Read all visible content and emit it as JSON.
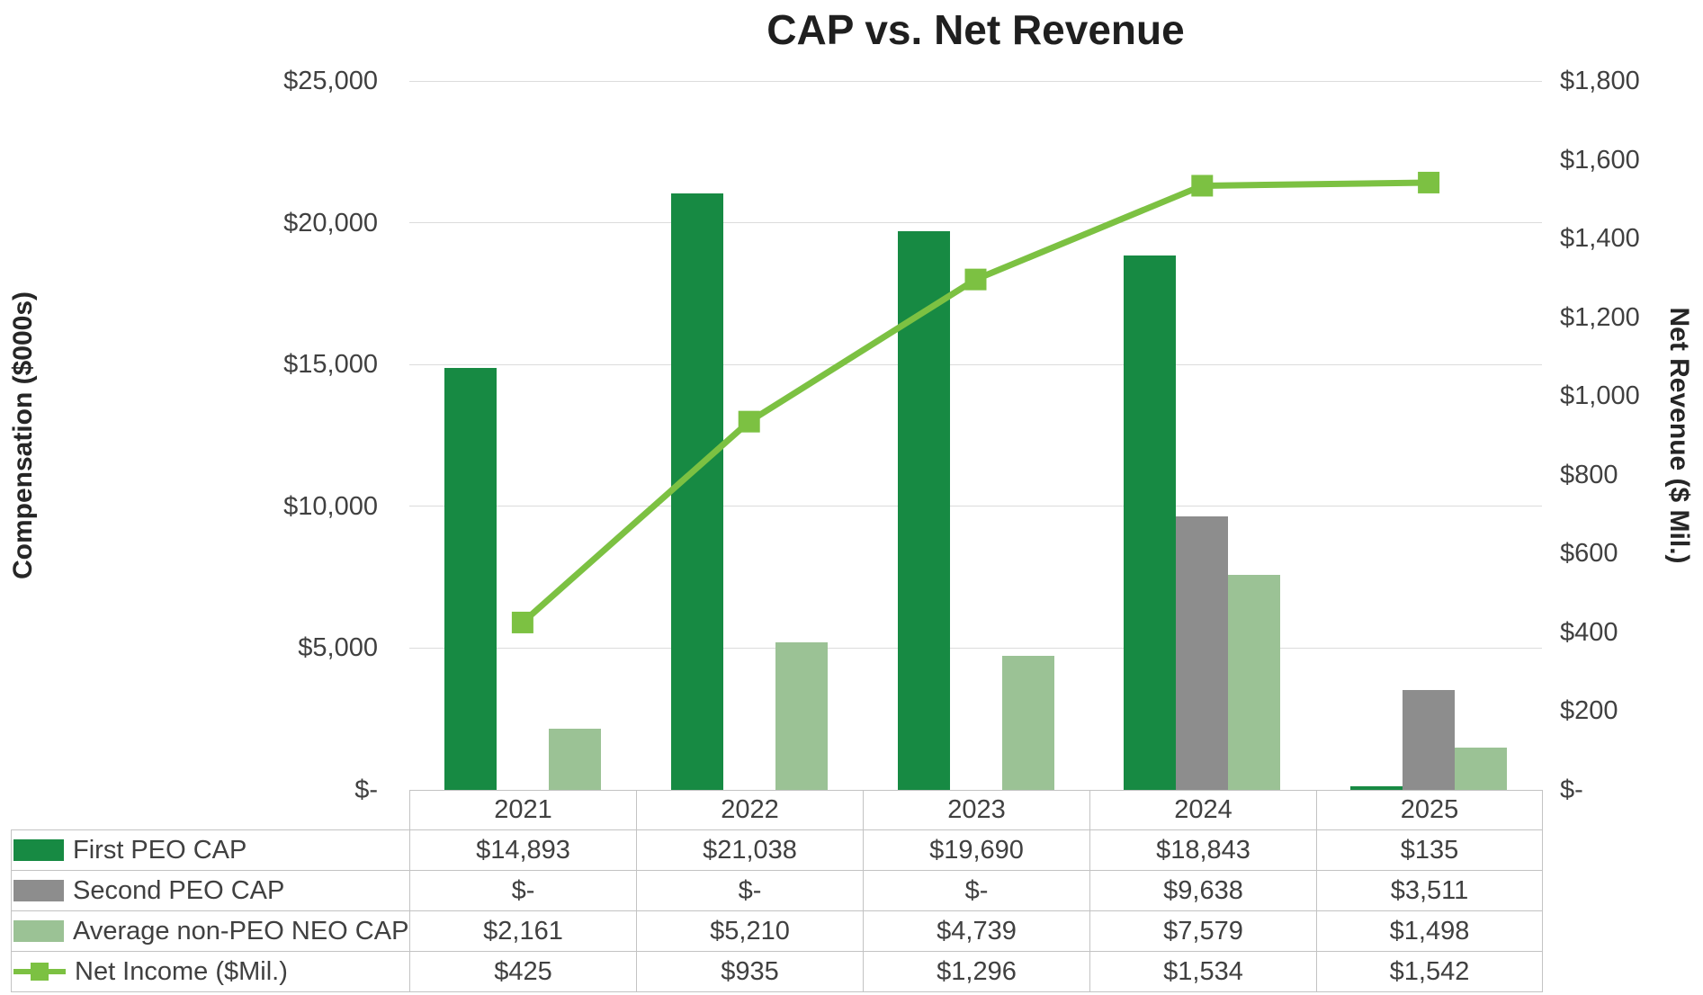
{
  "chart_data": {
    "type": "combo-bar-line",
    "title": "CAP vs. Net Revenue",
    "ylabel_left": "Compensation ($000s)",
    "ylabel_right": "Net Revenue ($ Mil.)",
    "categories": [
      "2021",
      "2022",
      "2023",
      "2024",
      "2025"
    ],
    "grid": true,
    "legend_position": "table-left",
    "left_axis": {
      "min": 0,
      "max": 25000,
      "tick_values": [
        0,
        5000,
        10000,
        15000,
        20000,
        25000
      ],
      "ticks": [
        "$-",
        "$5,000",
        "$10,000",
        "$15,000",
        "$20,000",
        "$25,000"
      ]
    },
    "right_axis": {
      "min": 0,
      "max": 1800,
      "tick_values": [
        0,
        200,
        400,
        600,
        800,
        1000,
        1200,
        1400,
        1600,
        1800
      ],
      "ticks": [
        "$-",
        "$200",
        "$400",
        "$600",
        "$800",
        "$1,000",
        "$1,200",
        "$1,400",
        "$1,600",
        "$1,800"
      ]
    },
    "bar_series": [
      {
        "name": "First PEO CAP",
        "color": "#178a43",
        "values": [
          14893,
          21038,
          19690,
          18843,
          135
        ],
        "labels": [
          "$14,893",
          "$21,038",
          "$19,690",
          "$18,843",
          "$135"
        ]
      },
      {
        "name": "Second PEO CAP",
        "color": "#8d8d8d",
        "values": [
          0,
          0,
          0,
          9638,
          3511
        ],
        "labels": [
          "$-",
          "$-",
          "$-",
          "$9,638",
          "$3,511"
        ]
      },
      {
        "name": "Average non-PEO NEO CAP",
        "color": "#9bc295",
        "values": [
          2161,
          5210,
          4739,
          7579,
          1498
        ],
        "labels": [
          "$2,161",
          "$5,210",
          "$4,739",
          "$7,579",
          "$1,498"
        ]
      }
    ],
    "line_series": {
      "name": "Net Income ($Mil.)",
      "color": "#7cc142",
      "values": [
        425,
        935,
        1296,
        1534,
        1542
      ],
      "labels": [
        "$425",
        "$935",
        "$1,296",
        "$1,534",
        "$1,542"
      ]
    }
  }
}
